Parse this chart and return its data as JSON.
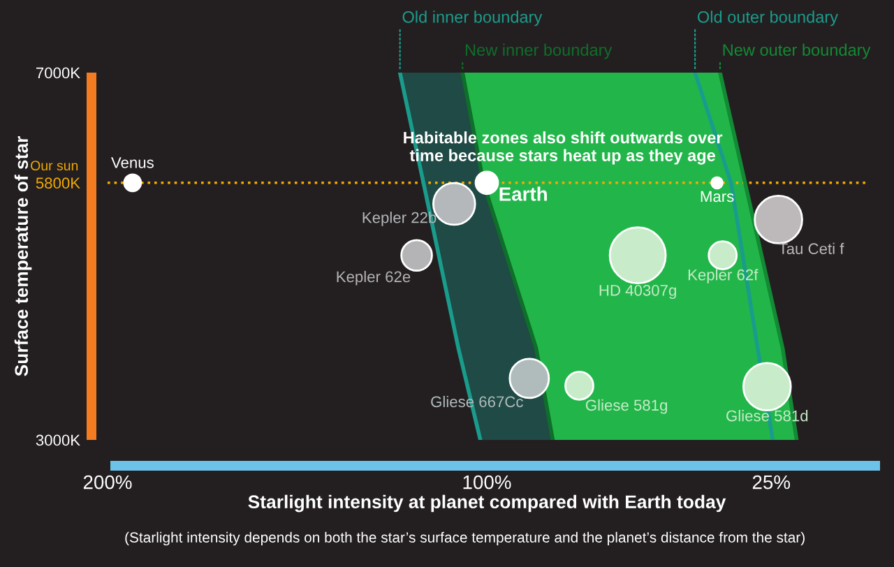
{
  "chart_data": {
    "type": "bubble",
    "xlabel": "Starlight intensity at planet compared with Earth today",
    "ylabel": "Surface temperature of star",
    "xlim": [
      200,
      0
    ],
    "xticks": [
      {
        "value": 200,
        "label": "200%"
      },
      {
        "value": 100,
        "label": "100%"
      },
      {
        "value": 25,
        "label": "25%"
      }
    ],
    "ylim": [
      3000,
      7000
    ],
    "yticks": [
      {
        "value": 3000,
        "label": "3000K"
      },
      {
        "value": 5800,
        "label": "5800K"
      },
      {
        "value": 7000,
        "label": "7000K"
      }
    ],
    "ref_lines": [
      {
        "axis": "y",
        "value": 5800,
        "label": "Our sun",
        "color": "#f2a900",
        "line_style": "dotted"
      }
    ],
    "series": [
      {
        "type": "line",
        "name": "Old inner boundary",
        "color": "#1a9c8c",
        "x": [
          122.9,
          116.7,
          107.5,
          101.7
        ],
        "values": [
          7000,
          5800,
          4000,
          3000
        ]
      },
      {
        "type": "line",
        "name": "New inner boundary",
        "color": "#0f6e2a",
        "x": [
          106.4,
          100.9,
          87.0,
          82.6
        ],
        "values": [
          7000,
          5800,
          4000,
          3000
        ]
      },
      {
        "type": "line",
        "name": "Old outer boundary",
        "color": "#1a9c8c",
        "x": [
          45.1,
          35.6,
          28.6,
          24.6
        ],
        "values": [
          7000,
          5800,
          4000,
          3000
        ]
      },
      {
        "type": "line",
        "name": "New outer boundary",
        "color": "#138a34",
        "x": [
          38.5,
          31.9,
          22.0,
          18.3
        ],
        "values": [
          7000,
          5800,
          4000,
          3000
        ]
      },
      {
        "name": "Venus",
        "color": "#ffffff",
        "x": [
          193.4
        ],
        "values": [
          5800
        ],
        "sizes": [
          0.09
        ]
      },
      {
        "name": "Earth",
        "color": "#ffffff",
        "x": [
          100
        ],
        "values": [
          5800
        ],
        "sizes": [
          0.16
        ]
      },
      {
        "name": "Mars",
        "color": "#ffffff",
        "x": [
          39.3
        ],
        "values": [
          5800
        ],
        "sizes": [
          0.04
        ]
      },
      {
        "name": "Kepler 22b",
        "color": "#b4b8ba",
        "x": [
          108.6
        ],
        "values": [
          5570
        ],
        "sizes": [
          0.56
        ]
      },
      {
        "name": "Kepler 62e",
        "color": "#b4b4b6",
        "x": [
          118.5
        ],
        "values": [
          5010
        ],
        "sizes": [
          0.3
        ]
      },
      {
        "name": "HD 40307g",
        "color": "#c8ebc9",
        "x": [
          60.2
        ],
        "values": [
          5010
        ],
        "sizes": [
          1
        ]
      },
      {
        "name": "Kepler 62f",
        "color": "#c8ebc9",
        "x": [
          37.8
        ],
        "values": [
          5010
        ],
        "sizes": [
          0.25
        ]
      },
      {
        "name": "Tau Ceti f",
        "color": "#bdb9ba",
        "x": [
          23.1
        ],
        "values": [
          5400
        ],
        "sizes": [
          0.72
        ]
      },
      {
        "name": "Gliese 667Cc",
        "color": "#b0bcbc",
        "x": [
          88.8
        ],
        "values": [
          3670
        ],
        "sizes": [
          0.49
        ]
      },
      {
        "name": "Gliese 581g",
        "color": "#c8ebc9",
        "x": [
          75.6
        ],
        "values": [
          3590
        ],
        "sizes": [
          0.25
        ]
      },
      {
        "name": "Gliese 581d",
        "color": "#c8ebc9",
        "x": [
          26.1
        ],
        "values": [
          3580
        ],
        "sizes": [
          0.72
        ]
      }
    ],
    "annotations": [
      "Habitable zones also shift outwards over time because stars heat up as they age",
      "(Starlight intensity depends on both the star’s surface temperature and the planet’s distance from the star)"
    ],
    "grid": false,
    "legend": false
  }
}
